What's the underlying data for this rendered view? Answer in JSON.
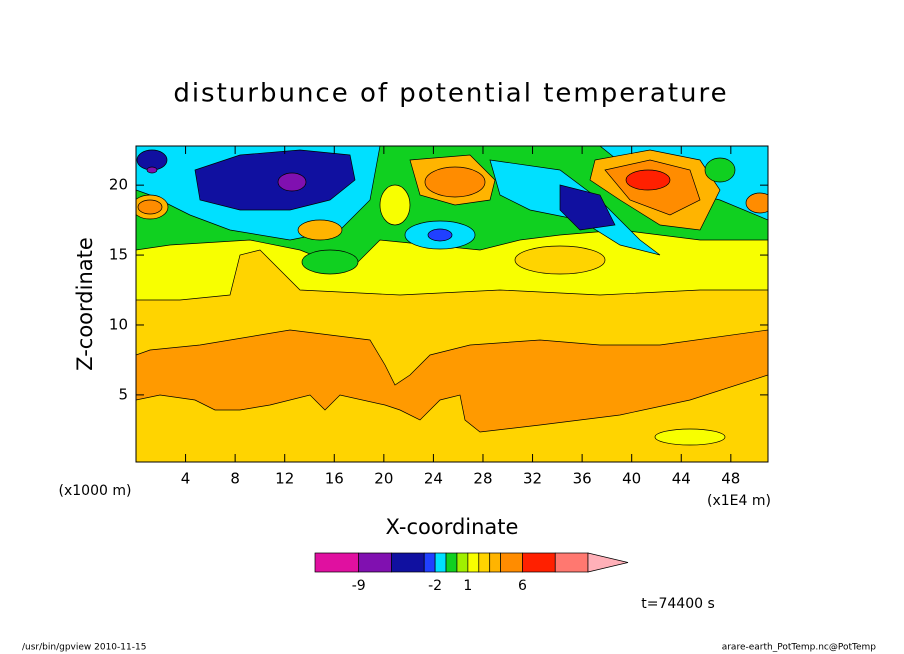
{
  "chart_data": {
    "type": "contour",
    "title": "disturbunce of potential temperature",
    "x_label": "X-coordinate",
    "y_label": "Z-coordinate",
    "x_unit": "(x1E4 m)",
    "y_unit": "(x1000 m)",
    "xlim": [
      0,
      51
    ],
    "ylim": [
      0.2,
      22.8
    ],
    "xticks": [
      4,
      8,
      12,
      16,
      20,
      24,
      28,
      32,
      36,
      40,
      44,
      48
    ],
    "yticks": [
      5,
      10,
      15,
      20
    ],
    "colorbar": {
      "levels": [
        -13,
        -9,
        -6,
        -3,
        -2,
        -1,
        0,
        1,
        2,
        3,
        4,
        6,
        9,
        12
      ],
      "colors": [
        "#e010a0",
        "#8010b0",
        "#1010a0",
        "#2040ff",
        "#00e0ff",
        "#10d020",
        "#a0f000",
        "#f8ff00",
        "#ffd400",
        "#ffb400",
        "#ff8c00",
        "#ff2000",
        "#ff7870",
        "#ffb0b8"
      ],
      "ticks": [
        -9,
        -2,
        1,
        6
      ]
    },
    "time_label": "t=74400 s",
    "footer_left": "/usr/bin/gpview  2010-11-15",
    "footer_right": "arare-earth_PotTemp.nc@PotTemp"
  }
}
